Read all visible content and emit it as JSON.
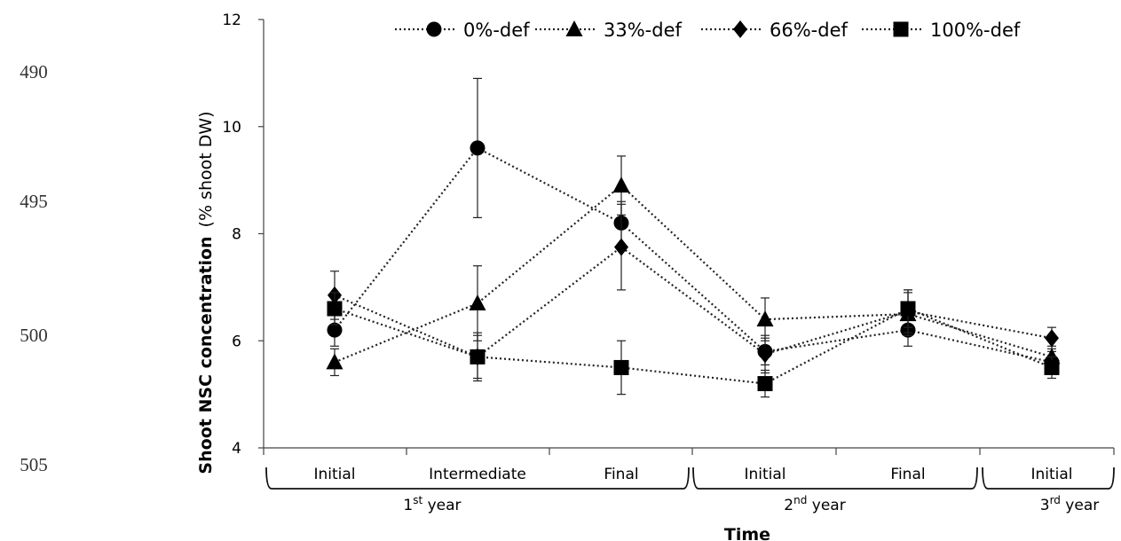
{
  "line_numbers": [
    "490",
    "495",
    "500",
    "505"
  ],
  "chart_data": {
    "type": "line",
    "categories": [
      "Initial",
      "Intermediate",
      "Final",
      "Initial",
      "Final",
      "Initial"
    ],
    "groups": [
      {
        "label_base": "1",
        "label_sup": "st",
        "label_rest": " year",
        "members": [
          0,
          1,
          2
        ]
      },
      {
        "label_base": "2",
        "label_sup": "nd",
        "label_rest": " year",
        "members": [
          3,
          4
        ]
      },
      {
        "label_base": "3",
        "label_sup": "rd",
        "label_rest": " year",
        "members": [
          5
        ]
      }
    ],
    "ylim": [
      4,
      12
    ],
    "yticks": [
      4,
      6,
      8,
      10,
      12
    ],
    "ylabel": "Shoot NSC concentration",
    "ylabel_unit": "(% shoot DW)",
    "xlabel": "Time",
    "legend_position": "top",
    "grid": false,
    "series": [
      {
        "name": "0%-def",
        "marker": "circle",
        "values": [
          6.2,
          9.6,
          8.2,
          5.8,
          6.2,
          5.6
        ],
        "err": [
          0.3,
          1.3,
          0.4,
          0.25,
          0.3,
          0.2
        ]
      },
      {
        "name": "33%-def",
        "marker": "triangle",
        "values": [
          5.6,
          6.7,
          8.9,
          6.4,
          6.5,
          5.7
        ],
        "err": [
          0.25,
          0.7,
          0.55,
          0.4,
          0.4,
          0.2
        ]
      },
      {
        "name": "66%-def",
        "marker": "diamond",
        "values": [
          6.85,
          5.7,
          7.75,
          5.75,
          6.55,
          6.05
        ],
        "err": [
          0.45,
          0.4,
          0.8,
          0.35,
          0.4,
          0.2
        ]
      },
      {
        "name": "100%-def",
        "marker": "square",
        "values": [
          6.6,
          5.7,
          5.5,
          5.2,
          6.6,
          5.5
        ],
        "err": [
          0.3,
          0.45,
          0.5,
          0.25,
          0.35,
          0.2
        ]
      }
    ]
  }
}
